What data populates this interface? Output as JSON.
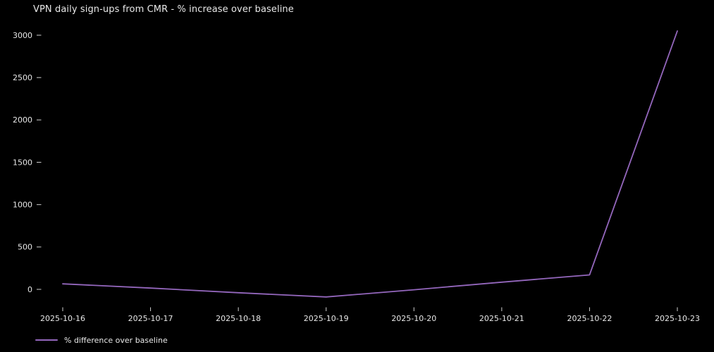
{
  "title": "VPN daily sign-ups from CMR - % increase over baseline",
  "legend": {
    "label": "% difference over baseline"
  },
  "colors": {
    "background": "#000000",
    "line": "#9467bd",
    "text": "#e8e8e8",
    "tick": "#cfcfcf"
  },
  "chart_data": {
    "type": "line",
    "title": "VPN daily sign-ups from CMR - % increase over baseline",
    "categories": [
      "2025-10-16",
      "2025-10-17",
      "2025-10-18",
      "2025-10-19",
      "2025-10-20",
      "2025-10-21",
      "2025-10-22",
      "2025-10-23"
    ],
    "series": [
      {
        "name": "% difference over baseline",
        "values": [
          65,
          15,
          -40,
          -90,
          -5,
          85,
          170,
          3050
        ]
      }
    ],
    "xlabel": "",
    "ylabel": "",
    "yticks": [
      0,
      500,
      1000,
      1500,
      2000,
      2500,
      3000
    ],
    "ylim": [
      -160,
      3140
    ],
    "grid": false,
    "legend_position": "lower-left",
    "theme": "dark"
  }
}
